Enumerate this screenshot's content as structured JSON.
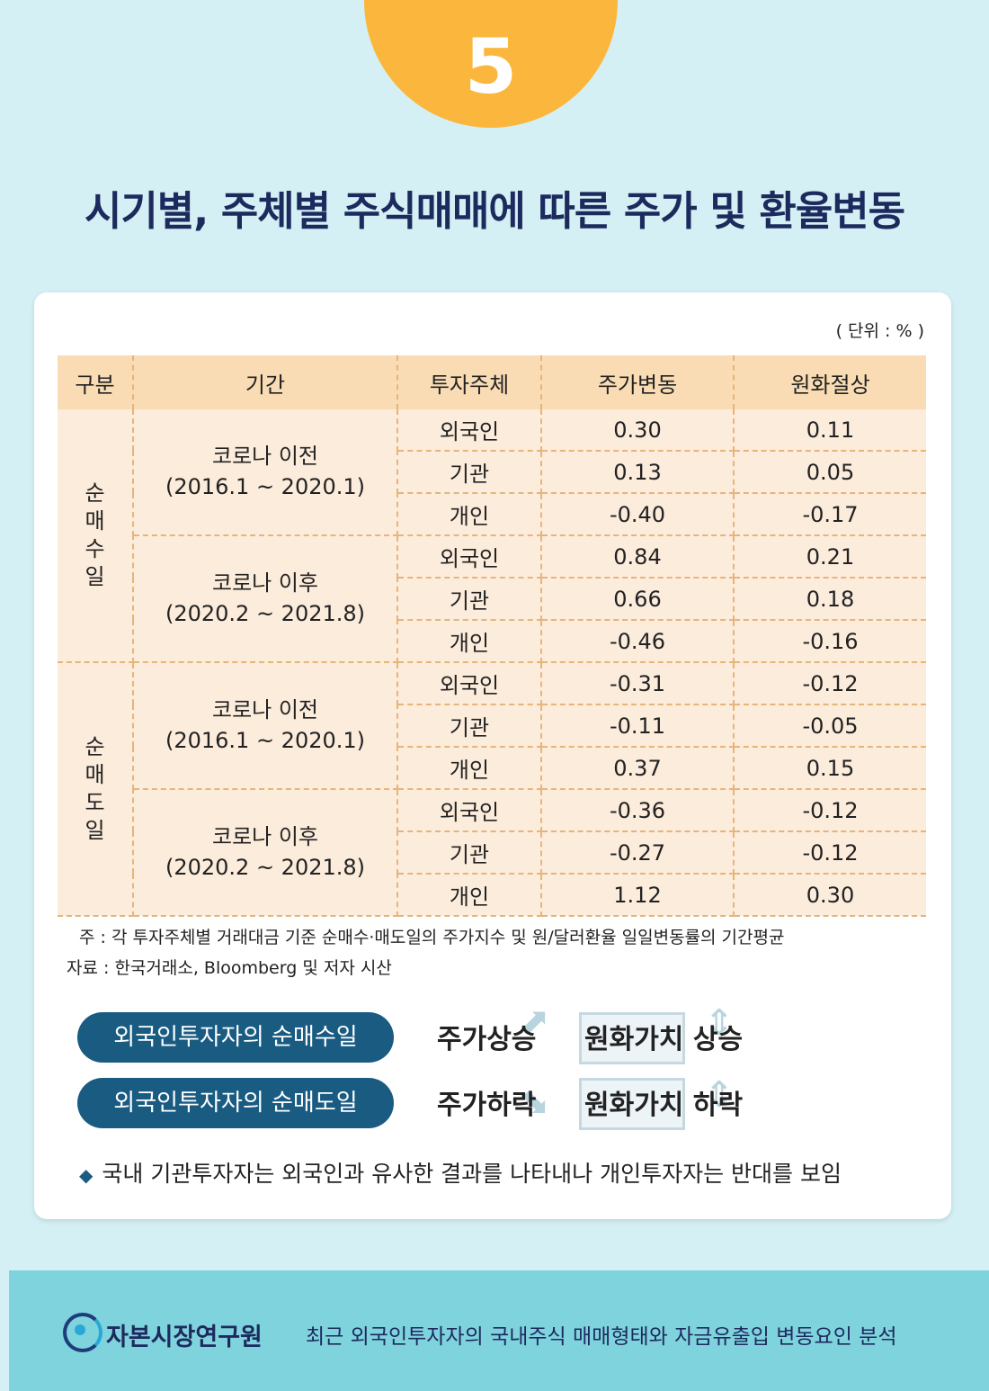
{
  "badge": {
    "number": "5"
  },
  "title": "시기별, 주체별 주식매매에 따른 주가 및 환율변동",
  "unit": "( 단위 : % )",
  "table": {
    "headers": [
      "구분",
      "기간",
      "투자주체",
      "주가변동",
      "원화절상"
    ],
    "groups": [
      {
        "category": "순매수일",
        "periods": [
          {
            "name": "코로나 이전",
            "range": "(2016.1 ~ 2020.1)",
            "rows": [
              {
                "investor": "외국인",
                "stock": "0.30",
                "fx": "0.11"
              },
              {
                "investor": "기관",
                "stock": "0.13",
                "fx": "0.05"
              },
              {
                "investor": "개인",
                "stock": "-0.40",
                "fx": "-0.17"
              }
            ]
          },
          {
            "name": "코로나 이후",
            "range": "(2020.2 ~ 2021.8)",
            "rows": [
              {
                "investor": "외국인",
                "stock": "0.84",
                "fx": "0.21"
              },
              {
                "investor": "기관",
                "stock": "0.66",
                "fx": "0.18"
              },
              {
                "investor": "개인",
                "stock": "-0.46",
                "fx": "-0.16"
              }
            ]
          }
        ]
      },
      {
        "category": "순매도일",
        "periods": [
          {
            "name": "코로나 이전",
            "range": "(2016.1 ~ 2020.1)",
            "rows": [
              {
                "investor": "외국인",
                "stock": "-0.31",
                "fx": "-0.12"
              },
              {
                "investor": "기관",
                "stock": "-0.11",
                "fx": "-0.05"
              },
              {
                "investor": "개인",
                "stock": "0.37",
                "fx": "0.15"
              }
            ]
          },
          {
            "name": "코로나 이후",
            "range": "(2020.2 ~ 2021.8)",
            "rows": [
              {
                "investor": "외국인",
                "stock": "-0.36",
                "fx": "-0.12"
              },
              {
                "investor": "기관",
                "stock": "-0.27",
                "fx": "-0.12"
              },
              {
                "investor": "개인",
                "stock": "1.12",
                "fx": "0.30"
              }
            ]
          }
        ]
      }
    ]
  },
  "notes": {
    "note": "주 : 각 투자주체별 거래대금 기준 순매수·매도일의 주가지수 및 원/달러환율 일일변동률의 기간평균",
    "source": "자료 : 한국거래소, Bloomberg 및 저자 시산"
  },
  "effects": {
    "buy": {
      "label": "외국인투자자의 순매수일",
      "stock": "주가상승",
      "fx": "원화가치 상승"
    },
    "sell": {
      "label": "외국인투자자의 순매도일",
      "stock": "주가하락",
      "fx": "원화가치 하락"
    }
  },
  "summary": "국내 기관투자자는 외국인과 유사한 결과를 나타내나 개인투자자는 반대를 보임",
  "footer": {
    "org": "자본시장연구원",
    "publication": "최근 외국인투자자의 국내주식 매매형태와 자금유출입 변동요인 분석"
  },
  "icons": {
    "badge": "circle-badge",
    "logo": "kcmi-logo-icon",
    "bullet": "diamond-icon",
    "arrow_up": "arrow-up-icon",
    "arrow_down": "arrow-down-icon"
  }
}
